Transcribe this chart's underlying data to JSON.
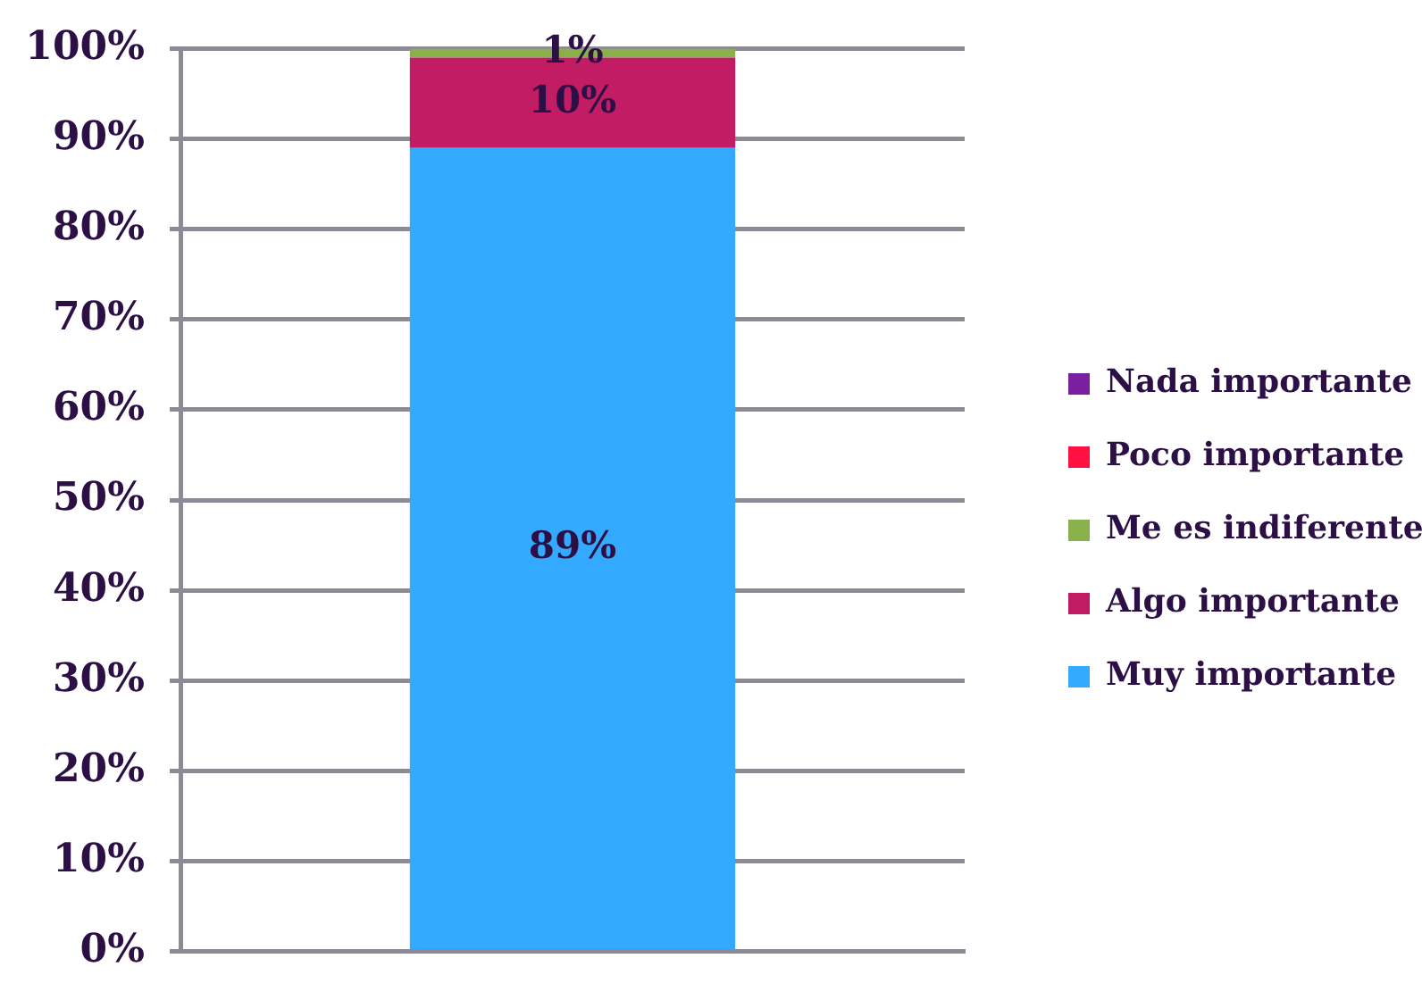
{
  "chart_data": {
    "type": "bar",
    "stacked": true,
    "categories": [
      null
    ],
    "series": [
      {
        "name": "Muy importante",
        "color": "#33aaff",
        "values": [
          89
        ],
        "value_labels": [
          "89%"
        ]
      },
      {
        "name": "Algo importante",
        "color": "#c21c65",
        "values": [
          10
        ],
        "value_labels": [
          "10%"
        ]
      },
      {
        "name": "Me es indiferente",
        "color": "#88b04b",
        "values": [
          1
        ],
        "value_labels": [
          "1%"
        ]
      },
      {
        "name": "Poco importante",
        "color": "#ff1040",
        "values": [
          0
        ],
        "value_labels": [
          null
        ]
      },
      {
        "name": "Nada importante",
        "color": "#7a1fa0",
        "values": [
          0
        ],
        "value_labels": [
          null
        ]
      }
    ],
    "ylim": [
      0,
      100
    ],
    "yticks": [
      {
        "value": 0,
        "label": "0%"
      },
      {
        "value": 10,
        "label": "10%"
      },
      {
        "value": 20,
        "label": "20%"
      },
      {
        "value": 30,
        "label": "30%"
      },
      {
        "value": 40,
        "label": "40%"
      },
      {
        "value": 50,
        "label": "50%"
      },
      {
        "value": 60,
        "label": "60%"
      },
      {
        "value": 70,
        "label": "70%"
      },
      {
        "value": 80,
        "label": "80%"
      },
      {
        "value": 90,
        "label": "90%"
      },
      {
        "value": 100,
        "label": "100%"
      }
    ],
    "grid": "y",
    "legend": "right",
    "tick_labels": "y"
  }
}
